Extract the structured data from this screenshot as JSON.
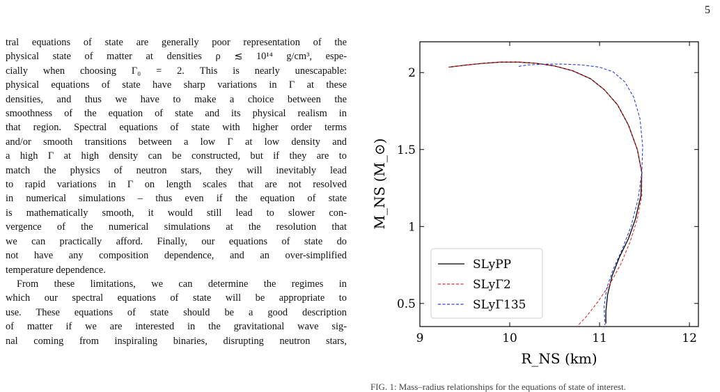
{
  "page": {
    "number": "5"
  },
  "body_text": {
    "paragraph1_lines": [
      "tral equations of state are generally poor representation of the",
      "physical state of matter at densities ρ ≲ 10¹⁴ g/cm³, espe-",
      "cially when choosing Γ₀ = 2. This is nearly unescapable:",
      "physical equations of state have sharp variations in Γ at these",
      "densities, and thus we have to make a choice between the",
      "smoothness of the equation of state and its physical realism in",
      "that region. Spectral equations of state with higher order terms",
      "and/or smooth transitions between a low Γ at low density and",
      "a high Γ at high density can be constructed, but if they are to",
      "match the physics of neutron stars, they will inevitably lead",
      "to rapid variations in Γ on length scales that are not resolved",
      "in numerical simulations – thus even if the equation of state",
      "is mathematically smooth, it would still lead to slower con-",
      "vergence of the numerical simulations at the resolution that",
      "we can practically afford. Finally, our equations of state do",
      "not have any composition dependence, and an over-simplified",
      "temperature dependence."
    ],
    "paragraph2_lines": [
      "From these limitations, we can determine the regimes in",
      "which our spectral equations of state will be appropriate to",
      "use. These equations of state should be a good description",
      "of matter if we are interested in the gravitational wave sig-",
      "nal coming from inspiraling binaries, disrupting neutron stars,"
    ]
  },
  "caption": "FIG. 1: Mass–radius relationships for the equations of state of interest.",
  "chart_data": {
    "type": "line",
    "xlabel": "R_NS (km)",
    "ylabel": "M_NS (M_⊙)",
    "xlim": [
      9,
      12.1
    ],
    "ylim": [
      0.35,
      2.2
    ],
    "xticks": [
      "9",
      "10",
      "11",
      "12"
    ],
    "yticks": [
      "0.5",
      "1",
      "1.5",
      "2"
    ],
    "xtick_values": [
      9,
      10,
      11,
      12
    ],
    "ytick_values": [
      0.5,
      1,
      1.5,
      2
    ],
    "legend_position": "lower-left",
    "grid": false,
    "series": [
      {
        "name": "SLyPP",
        "color": "#000000",
        "dash": "solid",
        "points": [
          [
            9.32,
            2.035
          ],
          [
            9.5,
            2.048
          ],
          [
            9.7,
            2.06
          ],
          [
            9.9,
            2.068
          ],
          [
            10.1,
            2.068
          ],
          [
            10.3,
            2.06
          ],
          [
            10.5,
            2.043
          ],
          [
            10.7,
            2.012
          ],
          [
            10.9,
            1.96
          ],
          [
            11.05,
            1.89
          ],
          [
            11.2,
            1.79
          ],
          [
            11.32,
            1.66
          ],
          [
            11.42,
            1.5
          ],
          [
            11.47,
            1.35
          ],
          [
            11.46,
            1.2
          ],
          [
            11.4,
            1.05
          ],
          [
            11.32,
            0.92
          ],
          [
            11.22,
            0.8
          ],
          [
            11.14,
            0.68
          ],
          [
            11.09,
            0.56
          ],
          [
            11.07,
            0.45
          ],
          [
            11.07,
            0.37
          ]
        ]
      },
      {
        "name": "SLyΓ2",
        "color": "#e8282a",
        "dash": "dashed",
        "points": [
          [
            9.32,
            2.035
          ],
          [
            9.5,
            2.048
          ],
          [
            9.7,
            2.06
          ],
          [
            9.9,
            2.068
          ],
          [
            10.1,
            2.068
          ],
          [
            10.3,
            2.06
          ],
          [
            10.5,
            2.043
          ],
          [
            10.7,
            2.012
          ],
          [
            10.9,
            1.96
          ],
          [
            11.05,
            1.89
          ],
          [
            11.2,
            1.79
          ],
          [
            11.32,
            1.66
          ],
          [
            11.42,
            1.5
          ],
          [
            11.47,
            1.35
          ],
          [
            11.47,
            1.2
          ],
          [
            11.42,
            1.05
          ],
          [
            11.34,
            0.9
          ],
          [
            11.24,
            0.76
          ],
          [
            11.12,
            0.63
          ],
          [
            10.98,
            0.51
          ],
          [
            10.86,
            0.42
          ],
          [
            10.75,
            0.35
          ]
        ]
      },
      {
        "name": "SLyΓ135",
        "color": "#2b3be0",
        "dash": "dashed",
        "points": [
          [
            10.1,
            2.04
          ],
          [
            10.2,
            2.05
          ],
          [
            10.4,
            2.055
          ],
          [
            10.6,
            2.055
          ],
          [
            10.8,
            2.05
          ],
          [
            11.0,
            2.035
          ],
          [
            11.15,
            2.005
          ],
          [
            11.28,
            1.94
          ],
          [
            11.38,
            1.84
          ],
          [
            11.45,
            1.7
          ],
          [
            11.48,
            1.52
          ],
          [
            11.47,
            1.35
          ],
          [
            11.43,
            1.18
          ],
          [
            11.35,
            1.0
          ],
          [
            11.25,
            0.85
          ],
          [
            11.15,
            0.72
          ],
          [
            11.08,
            0.6
          ],
          [
            11.05,
            0.48
          ],
          [
            11.06,
            0.36
          ]
        ]
      }
    ]
  }
}
